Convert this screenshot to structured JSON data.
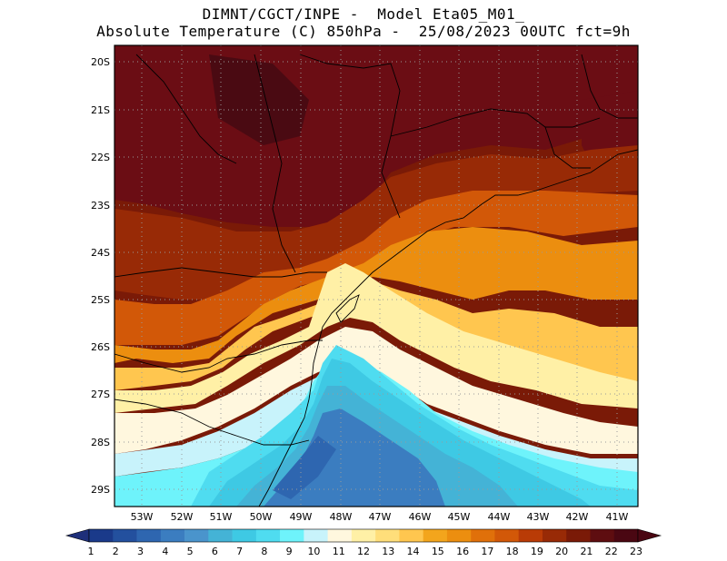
{
  "header": {
    "line1": "DIMNT/CGCT/INPE -  Model Eta05_M01_",
    "line2": "Absolute Temperature (C) 850hPa -  25/08/2023 00UTC fct=9h"
  },
  "map": {
    "lat_labels": [
      "20S",
      "21S",
      "22S",
      "23S",
      "24S",
      "25S",
      "26S",
      "27S",
      "28S",
      "29S"
    ],
    "lon_labels": [
      "53W",
      "52W",
      "51W",
      "50W",
      "49W",
      "48W",
      "47W",
      "46W",
      "45W",
      "44W",
      "43W",
      "42W",
      "41W"
    ],
    "gridlines": "dotted"
  },
  "colorbar": {
    "labels": [
      "1",
      "2",
      "3",
      "4",
      "5",
      "6",
      "7",
      "8",
      "9",
      "10",
      "11",
      "12",
      "13",
      "14",
      "15",
      "16",
      "17",
      "18",
      "19",
      "20",
      "21",
      "22",
      "23"
    ],
    "colors": [
      "#1a3a8a",
      "#23509e",
      "#2e66b0",
      "#3b7dc0",
      "#4a94cc",
      "#44b3d6",
      "#3ec9e4",
      "#4fdcf0",
      "#6ef3fb",
      "#c8f3fb",
      "#fff7de",
      "#fff0a6",
      "#ffde7a",
      "#ffc64f",
      "#f3a51c",
      "#ec8e0f",
      "#e0700a",
      "#d25808",
      "#b93b06",
      "#982a06",
      "#7a1a07",
      "#5e0d10",
      "#4a0712"
    ],
    "left_arrow_color": "#1e2f7a",
    "right_arrow_color": "#4a0712"
  }
}
